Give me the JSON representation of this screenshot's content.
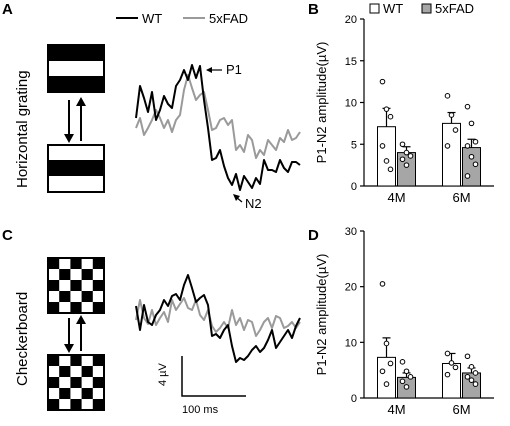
{
  "panel_labels": {
    "a": "A",
    "b": "B",
    "c": "C",
    "d": "D"
  },
  "stimulus": {
    "horizontal": "Horizontal grating",
    "checker": "Checkerboard"
  },
  "trace_legend": {
    "wt": "WT",
    "fad": "5xFAD"
  },
  "trace_annotations": {
    "p1": "P1",
    "n2": "N2"
  },
  "scale_bar": {
    "voltage": "4 µV",
    "time": "100 ms"
  },
  "colors": {
    "wt": "#000000",
    "fad": "#9a9a9a",
    "bar_wt": "#ffffff",
    "bar_fad": "#a6a6a6"
  },
  "chart_data": [
    {
      "panel": "B",
      "type": "bar",
      "ylabel": "P1-N2 amplitude(µV)",
      "ylim": [
        0,
        20
      ],
      "yticks": [
        "0",
        "5",
        "10",
        "15",
        "20"
      ],
      "categories": [
        "4M",
        "6M"
      ],
      "legend": [
        "WT",
        "5xFAD"
      ],
      "legend_position": "top",
      "series": [
        {
          "name": "WT",
          "values": [
            7.1,
            7.5
          ],
          "sem": [
            2.2,
            1.3
          ],
          "points": [
            [
              12.5,
              9.2,
              8.3,
              4.8,
              3.0,
              2.0
            ],
            [
              10.8,
              8.5,
              6.7,
              4.8
            ]
          ]
        },
        {
          "name": "5xFAD",
          "values": [
            4.0,
            4.6
          ],
          "sem": [
            0.7,
            1.0
          ],
          "points": [
            [
              5.0,
              4.0,
              3.6,
              3.2,
              2.5
            ],
            [
              9.5,
              7.5,
              5.3,
              4.8,
              3.5,
              2.6,
              1.2
            ]
          ]
        }
      ]
    },
    {
      "panel": "D",
      "type": "bar",
      "ylabel": "P1-N2 amplitude(µV)",
      "ylim": [
        0,
        30
      ],
      "yticks": [
        "0",
        "10",
        "20",
        "30"
      ],
      "categories": [
        "4M",
        "6M"
      ],
      "legend": [
        "WT",
        "5xFAD"
      ],
      "series": [
        {
          "name": "WT",
          "values": [
            7.3,
            6.2
          ],
          "sem": [
            3.5,
            1.8
          ],
          "points": [
            [
              20.5,
              9.8,
              6.2,
              4.8,
              2.5
            ],
            [
              8.0,
              6.3,
              5.5,
              4.2
            ]
          ]
        },
        {
          "name": "5xFAD",
          "values": [
            3.7,
            4.5
          ],
          "sem": [
            0.8,
            0.9
          ],
          "points": [
            [
              6.5,
              4.8,
              3.8,
              3.0,
              2.0
            ],
            [
              7.5,
              5.6,
              4.5,
              3.8,
              3.2,
              2.5
            ]
          ]
        }
      ]
    }
  ]
}
